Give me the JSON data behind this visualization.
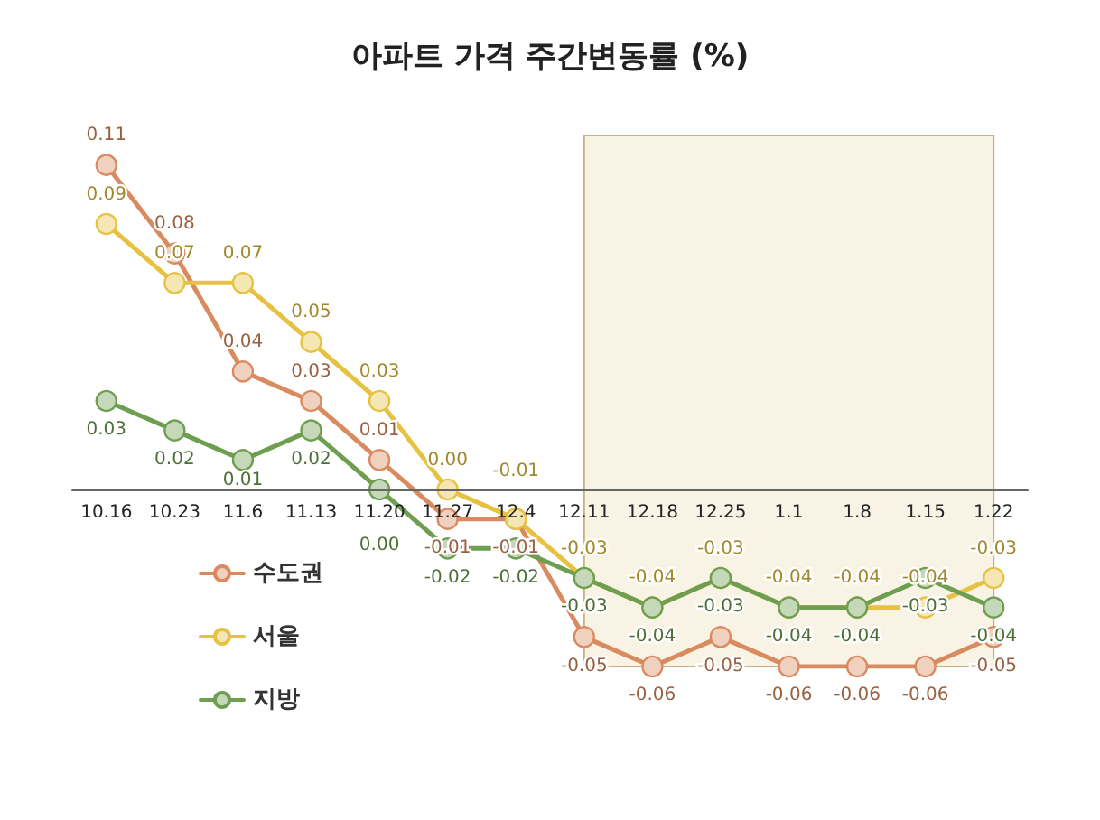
{
  "chart_data": {
    "type": "line",
    "title": "아파트 가격 주간변동률 (%)",
    "categories": [
      "10.16",
      "10.23",
      "11.6",
      "11.13",
      "11.20",
      "11.27",
      "12.4",
      "12.11",
      "12.18",
      "12.25",
      "1.1",
      "1.8",
      "1.15",
      "1.22"
    ],
    "series": [
      {
        "name": "수도권",
        "color": "#d98a5f",
        "values": [
          0.11,
          0.08,
          0.04,
          0.03,
          0.01,
          -0.01,
          -0.01,
          -0.05,
          -0.06,
          -0.05,
          -0.06,
          -0.06,
          -0.06,
          -0.05
        ],
        "value_labels": [
          "0.11",
          "0.08",
          "0.04",
          "0.03",
          "0.01",
          "-0.01",
          "-0.01",
          "-0.05",
          "-0.06",
          "-0.05",
          "-0.06",
          "-0.06",
          "-0.06",
          "-0.05"
        ]
      },
      {
        "name": "서울",
        "color": "#e6c240",
        "values": [
          0.09,
          0.07,
          0.07,
          0.05,
          0.03,
          0.0,
          -0.01,
          -0.03,
          -0.04,
          -0.03,
          -0.04,
          -0.04,
          -0.04,
          -0.03
        ],
        "value_labels": [
          "0.09",
          "0.07",
          "0.07",
          "0.05",
          "0.03",
          "0.00",
          "-0.01",
          "-0.03",
          "-0.04",
          "-0.03",
          "-0.04",
          "-0.04",
          "-0.04",
          "-0.03"
        ]
      },
      {
        "name": "지방",
        "color": "#6e9e4f",
        "values": [
          0.03,
          0.02,
          0.01,
          0.02,
          0.0,
          -0.02,
          -0.02,
          -0.03,
          -0.04,
          -0.03,
          -0.04,
          -0.04,
          -0.03,
          -0.04
        ],
        "value_labels": [
          "0.03",
          "0.02",
          "0.01",
          "0.02",
          "0.00",
          "-0.02",
          "-0.02",
          "-0.03",
          "-0.04",
          "-0.03",
          "-0.04",
          "-0.04",
          "-0.03",
          "-0.04"
        ]
      }
    ],
    "bands": [
      {
        "axis": "x",
        "from": "12.11",
        "to": "1.22",
        "color": "#f8f3e4"
      }
    ],
    "marker": "circle",
    "legend": "bottom left",
    "grid": false
  }
}
